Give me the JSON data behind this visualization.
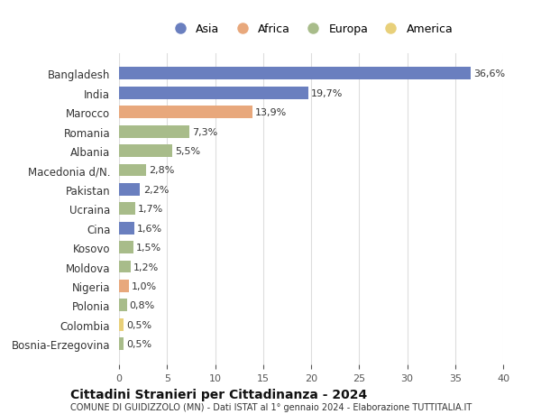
{
  "categories": [
    "Bosnia-Erzegovina",
    "Colombia",
    "Polonia",
    "Nigeria",
    "Moldova",
    "Kosovo",
    "Cina",
    "Ucraina",
    "Pakistan",
    "Macedonia d/N.",
    "Albania",
    "Romania",
    "Marocco",
    "India",
    "Bangladesh"
  ],
  "values": [
    0.5,
    0.5,
    0.8,
    1.0,
    1.2,
    1.5,
    1.6,
    1.7,
    2.2,
    2.8,
    5.5,
    7.3,
    13.9,
    19.7,
    36.6
  ],
  "labels": [
    "0,5%",
    "0,5%",
    "0,8%",
    "1,0%",
    "1,2%",
    "1,5%",
    "1,6%",
    "1,7%",
    "2,2%",
    "2,8%",
    "5,5%",
    "7,3%",
    "13,9%",
    "19,7%",
    "36,6%"
  ],
  "continents": [
    "Europa",
    "America",
    "Europa",
    "Africa",
    "Europa",
    "Europa",
    "Asia",
    "Europa",
    "Asia",
    "Europa",
    "Europa",
    "Europa",
    "Africa",
    "Asia",
    "Asia"
  ],
  "colors": {
    "Asia": "#6a7fbf",
    "Africa": "#e8a87c",
    "Europa": "#a8bc8a",
    "America": "#e8d07a"
  },
  "legend_order": [
    "Asia",
    "Africa",
    "Europa",
    "America"
  ],
  "title": "Cittadini Stranieri per Cittadinanza - 2024",
  "subtitle": "COMUNE DI GUIDIZZOLO (MN) - Dati ISTAT al 1° gennaio 2024 - Elaborazione TUTTITALIA.IT",
  "xlabel_ticks": [
    0,
    5,
    10,
    15,
    20,
    25,
    30,
    35,
    40
  ],
  "xlim": [
    0,
    40
  ],
  "background_color": "#ffffff",
  "grid_color": "#dddddd",
  "bar_height": 0.65
}
